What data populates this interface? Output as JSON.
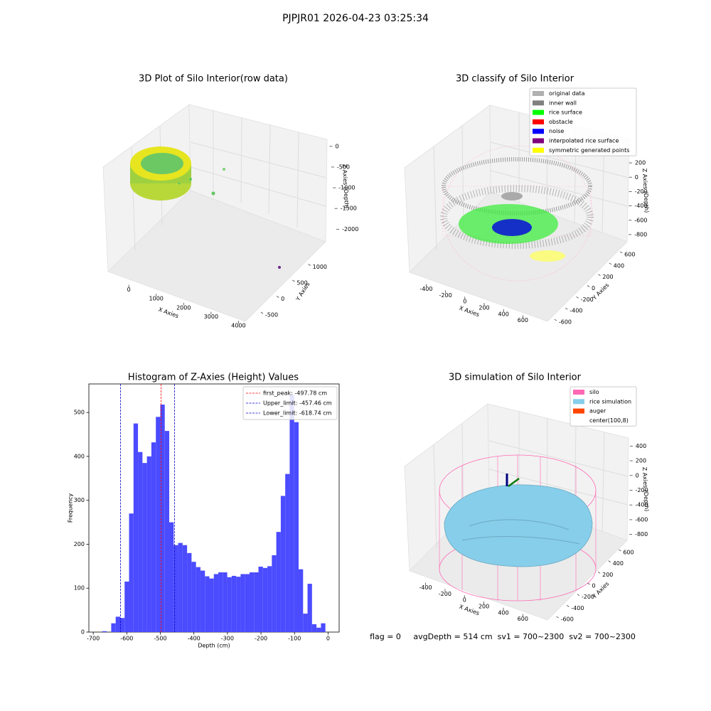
{
  "suptitle": "PJPJR01 2026-04-23 03:25:34",
  "chart_data": [
    {
      "type": "scatter3d",
      "title": "3D Plot of Silo Interior(row data)",
      "xlabel": "X Axies",
      "ylabel": "Y Axies",
      "zlabel": "Z Axies (Depth)",
      "xlim": [
        -600,
        4300
      ],
      "xticks": [
        0,
        1000,
        2000,
        3000,
        4000
      ],
      "ylim": [
        -700,
        1300
      ],
      "yticks": [
        -500,
        0,
        500,
        1000
      ],
      "zlim": [
        -2200,
        100
      ],
      "zticks": [
        0,
        -500,
        -1000,
        -1500,
        -2000
      ]
    },
    {
      "type": "scatter3d",
      "title": "3D classify of Silo Interior",
      "xlabel": "X Axies",
      "ylabel": "Y Axies",
      "zlabel": "Z Axies (Depth)",
      "xlim": [
        -550,
        700
      ],
      "xticks": [
        -400,
        -200,
        0,
        200,
        400,
        600
      ],
      "ylim": [
        -650,
        650
      ],
      "yticks": [
        -600,
        -400,
        -200,
        0,
        200,
        400,
        600
      ],
      "zlim": [
        -900,
        300
      ],
      "zticks": [
        -800,
        -600,
        -400,
        -200,
        0,
        200
      ],
      "legend": "upper right",
      "legend_entries": [
        {
          "name": "original data",
          "color": "#b0b0b0"
        },
        {
          "name": "inner wall",
          "color": "#808080"
        },
        {
          "name": "rice surface",
          "color": "#00ff00"
        },
        {
          "name": "obstacle",
          "color": "#ff0000"
        },
        {
          "name": "noise",
          "color": "#0000ff"
        },
        {
          "name": "interpolated rice surface",
          "color": "#800080"
        },
        {
          "name": "symmetric generated points",
          "color": "#ffff00"
        }
      ]
    },
    {
      "type": "histogram",
      "title": "Histogram of Z-Axies (Height) Values",
      "xlabel": "Depth (cm)",
      "ylabel": "Frequency",
      "color": "#4b4bff",
      "bins": [
        -673,
        -659.7,
        -646.4,
        -633.1,
        -619.8,
        -606.5,
        -593.2,
        -579.9,
        -566.6,
        -553.3,
        -540,
        -526.7,
        -513.4,
        -500.1,
        -486.8,
        -473.5,
        -460.2,
        -446.9,
        -433.6,
        -420.3,
        -407,
        -393.7,
        -380.4,
        -367.1,
        -353.8,
        -340.5,
        -327.2,
        -313.9,
        -300.6,
        -287.3,
        -274,
        -260.7,
        -247.4,
        -234.1,
        -220.8,
        -207.5,
        -194.2,
        -180.9,
        -167.6,
        -154.3,
        -141,
        -127.7,
        -114.4,
        -101.1,
        -87.8,
        -74.5,
        -61.2,
        -47.9,
        -34.6,
        -21.3,
        -8
      ],
      "values": [
        2,
        0,
        20,
        35,
        32,
        115,
        270,
        475,
        410,
        385,
        400,
        432,
        490,
        518,
        458,
        250,
        198,
        203,
        198,
        180,
        160,
        148,
        140,
        127,
        122,
        132,
        136,
        136,
        125,
        128,
        126,
        132,
        132,
        136,
        136,
        149,
        146,
        150,
        175,
        228,
        310,
        360,
        540,
        478,
        143,
        42,
        110,
        18,
        10,
        20
      ],
      "xlim": [
        -713,
        33
      ],
      "xticks": [
        -700,
        -600,
        -500,
        -400,
        -300,
        -200,
        -100,
        0
      ],
      "ylim": [
        0,
        565
      ],
      "yticks": [
        0,
        100,
        200,
        300,
        400,
        500
      ],
      "legend": "upper right",
      "reference_lines": [
        {
          "value": -497.78,
          "label": "first_peak: -497.78 cm",
          "color": "#ff0000"
        },
        {
          "value": -457.46,
          "label": "Upper_limit: -457.46 cm",
          "color": "#0000cc"
        },
        {
          "value": -618.74,
          "label": "Lower_limit: -618.74 cm",
          "color": "#0000cc"
        }
      ]
    },
    {
      "type": "surface3d",
      "title": "3D simulation of Silo Interior",
      "xlabel": "X Axies",
      "ylabel": "Y Axies",
      "zlabel": "Z Axies (Depth)",
      "xlim": [
        -550,
        700
      ],
      "xticks": [
        -400,
        -200,
        0,
        200,
        400,
        600
      ],
      "ylim": [
        -650,
        650
      ],
      "yticks": [
        -600,
        -400,
        -200,
        0,
        200,
        400,
        600
      ],
      "zlim": [
        -900,
        500
      ],
      "zticks": [
        -800,
        -600,
        -400,
        -200,
        0,
        200,
        400
      ],
      "legend": "upper right",
      "legend_entries": [
        {
          "name": "silo",
          "color": "#ff69b4"
        },
        {
          "name": "rice simulation",
          "color": "#87ceeb"
        },
        {
          "name": "auger",
          "color": "#ff4500"
        },
        {
          "name": "center(100,8)",
          "color": "#ffffff"
        }
      ],
      "annotation": "flag = 0     avgDepth = 514 cm  sv1 = 700~2300  sv2 = 700~2300"
    }
  ]
}
